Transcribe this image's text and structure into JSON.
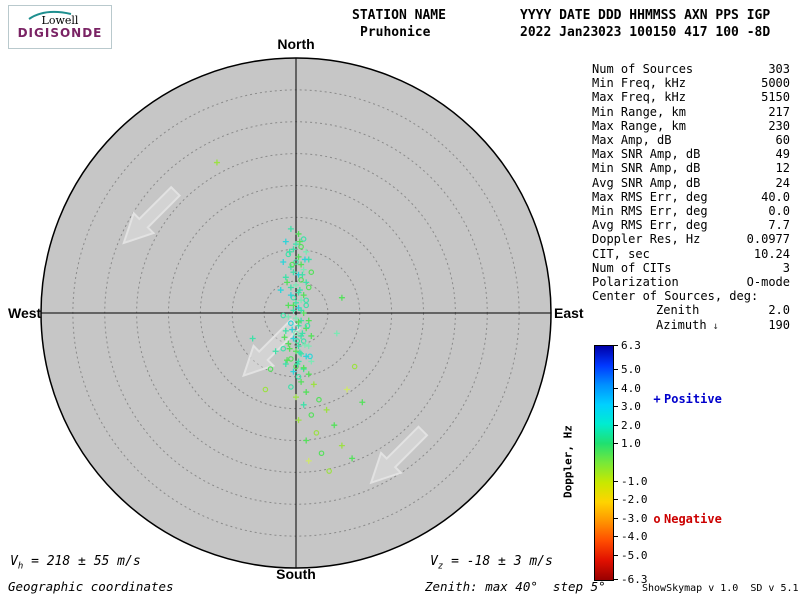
{
  "logo": {
    "line1": "Lowell",
    "line2": "DIGISONDE",
    "digisonde_color": "#7a2364",
    "swoosh_color": "#1f8f8f"
  },
  "header": {
    "station_label": "STATION NAME",
    "station_value": "Pruhonice",
    "date_label": "YYYY DATE",
    "date_value": "2022 Jan23",
    "flags_label": "DDD HHMMSS AXN PPS IGP",
    "flags_value": "023 100150 417 100 -8D"
  },
  "stats": [
    {
      "label": "Num of Sources",
      "value": "303"
    },
    {
      "label": "Min Freq, kHz",
      "value": "5000"
    },
    {
      "label": "Max Freq, kHz",
      "value": "5150"
    },
    {
      "label": "Min Range, km",
      "value": "217"
    },
    {
      "label": "Max Range, km",
      "value": "230"
    },
    {
      "label": "Max Amp, dB",
      "value": "60"
    },
    {
      "label": "Max SNR Amp, dB",
      "value": "49"
    },
    {
      "label": "Min SNR Amp, dB",
      "value": "12"
    },
    {
      "label": "Avg SNR Amp, dB",
      "value": "24"
    },
    {
      "label": "Max RMS Err, deg",
      "value": "40.0"
    },
    {
      "label": "Min RMS Err, deg",
      "value": "0.0"
    },
    {
      "label": "Avg RMS Err, deg",
      "value": "7.7"
    },
    {
      "label": "Doppler Res, Hz",
      "value": "0.0977"
    },
    {
      "label": "CIT, sec",
      "value": "10.24"
    },
    {
      "label": "Num of CITs",
      "value": "3"
    },
    {
      "label": "Polarization",
      "value": "O-mode"
    },
    {
      "label": "Center of Sources, deg:",
      "value": ""
    },
    {
      "label": "Zenith",
      "value": "2.0",
      "indent": true
    },
    {
      "label": "Azimuth",
      "value": "190",
      "indent": true,
      "icon": "↓"
    }
  ],
  "footer": {
    "vh": {
      "prefix": "V",
      "sub": "h",
      "rest": " = 218 ± 55 m/s"
    },
    "vz": {
      "prefix": "V",
      "sub": "z",
      "rest": " = -18 ± 3 m/s"
    },
    "geo": "Geographic coordinates",
    "zenith_note": "Zenith: max 40°  step 5°",
    "version": "ShowSkymap v 1.0  SD v 5.1"
  },
  "chart_data": {
    "type": "scatter",
    "subtype": "polar-skymap",
    "compass": {
      "north": "North",
      "south": "South",
      "east": "East",
      "west": "West"
    },
    "zenith_max_deg": 40,
    "zenith_step_deg": 5,
    "rings": 8,
    "circle_fill": "#c6c6c6",
    "ring_color": "#8a8a8a",
    "axis_color": "#000000",
    "arrow_angle_deg": 135,
    "arrows": [
      [
        -0.57,
        -0.38
      ],
      [
        -0.1,
        0.14
      ],
      [
        0.4,
        0.56
      ]
    ],
    "palette": [
      "#3fe0a8",
      "#55e05c",
      "#9ce044",
      "#2ed4d8",
      "#7ce8b4",
      "#cfe86a"
    ],
    "points": [
      [
        -0.02,
        -0.33,
        1,
        0
      ],
      [
        0.01,
        -0.31,
        1,
        1
      ],
      [
        0.03,
        -0.29,
        0,
        0
      ],
      [
        -0.04,
        -0.28,
        1,
        3
      ],
      [
        0,
        -0.27,
        1,
        0
      ],
      [
        0.02,
        -0.26,
        0,
        1
      ],
      [
        -0.01,
        -0.25,
        1,
        0
      ],
      [
        0.04,
        -0.24,
        1,
        4
      ],
      [
        -0.03,
        -0.23,
        0,
        0
      ],
      [
        0.01,
        -0.22,
        1,
        1
      ],
      [
        0.05,
        -0.21,
        1,
        0
      ],
      [
        -0.05,
        -0.2,
        1,
        3
      ],
      [
        0,
        -0.2,
        0,
        0
      ],
      [
        0.02,
        -0.19,
        1,
        1
      ],
      [
        -0.02,
        -0.18,
        1,
        0
      ],
      [
        0.03,
        -0.17,
        1,
        4
      ],
      [
        0.06,
        -0.16,
        0,
        1
      ],
      [
        -0.01,
        -0.16,
        1,
        0
      ],
      [
        0.01,
        -0.15,
        1,
        3
      ],
      [
        -0.04,
        -0.14,
        1,
        0
      ],
      [
        0.02,
        -0.13,
        0,
        1
      ],
      [
        0.04,
        -0.12,
        1,
        0
      ],
      [
        0,
        -0.11,
        1,
        4
      ],
      [
        -0.02,
        -0.1,
        1,
        0
      ],
      [
        0.05,
        -0.1,
        0,
        1
      ],
      [
        -0.06,
        -0.09,
        1,
        3
      ],
      [
        0.01,
        -0.08,
        1,
        0
      ],
      [
        0.03,
        -0.07,
        1,
        1
      ],
      [
        -0.01,
        -0.06,
        0,
        0
      ],
      [
        0.02,
        -0.05,
        1,
        4
      ],
      [
        0,
        -0.04,
        1,
        0
      ],
      [
        -0.03,
        -0.03,
        1,
        1
      ],
      [
        0.04,
        -0.03,
        0,
        0
      ],
      [
        0.01,
        -0.02,
        1,
        3
      ],
      [
        -0.01,
        -0.01,
        1,
        0
      ],
      [
        0.03,
        0,
        1,
        1
      ],
      [
        -0.05,
        0.01,
        0,
        0
      ],
      [
        0,
        0.02,
        1,
        4
      ],
      [
        0.02,
        0.03,
        1,
        0
      ],
      [
        0.05,
        0.03,
        1,
        1
      ],
      [
        -0.02,
        0.04,
        0,
        3
      ],
      [
        0.01,
        0.05,
        1,
        0
      ],
      [
        0.04,
        0.06,
        1,
        1
      ],
      [
        -0.04,
        0.07,
        1,
        0
      ],
      [
        0,
        0.08,
        0,
        4
      ],
      [
        0.02,
        0.09,
        1,
        0
      ],
      [
        0.06,
        0.09,
        1,
        1
      ],
      [
        -0.01,
        0.1,
        1,
        3
      ],
      [
        0.03,
        0.11,
        0,
        0
      ],
      [
        -0.03,
        0.12,
        1,
        1
      ],
      [
        0.01,
        0.13,
        1,
        0
      ],
      [
        0.05,
        0.13,
        1,
        4
      ],
      [
        -0.05,
        0.14,
        0,
        0
      ],
      [
        0,
        0.15,
        1,
        1
      ],
      [
        0.02,
        0.16,
        1,
        0
      ],
      [
        0.04,
        0.17,
        1,
        3
      ],
      [
        -0.02,
        0.18,
        0,
        1
      ],
      [
        0.01,
        0.19,
        1,
        0
      ],
      [
        0.06,
        0.19,
        1,
        4
      ],
      [
        -0.04,
        0.2,
        1,
        0
      ],
      [
        0,
        0.21,
        0,
        1
      ],
      [
        0.03,
        0.22,
        1,
        0
      ],
      [
        -0.01,
        0.23,
        1,
        3
      ],
      [
        0.05,
        0.24,
        1,
        1
      ],
      [
        0.01,
        0.25,
        0,
        0
      ],
      [
        0.02,
        0.27,
        1,
        1
      ],
      [
        0.07,
        0.28,
        1,
        2
      ],
      [
        -0.02,
        0.29,
        0,
        0
      ],
      [
        0.04,
        0.31,
        1,
        1
      ],
      [
        0,
        0.33,
        1,
        2
      ],
      [
        0.09,
        0.34,
        0,
        1
      ],
      [
        0.03,
        0.36,
        1,
        0
      ],
      [
        0.12,
        0.38,
        1,
        2
      ],
      [
        0.06,
        0.4,
        0,
        1
      ],
      [
        0.01,
        0.42,
        1,
        2
      ],
      [
        0.15,
        0.44,
        1,
        1
      ],
      [
        0.08,
        0.47,
        0,
        2
      ],
      [
        0.04,
        0.5,
        1,
        1
      ],
      [
        0.18,
        0.52,
        1,
        2
      ],
      [
        0.1,
        0.55,
        0,
        1
      ],
      [
        0.05,
        0.58,
        1,
        5
      ],
      [
        0.22,
        0.57,
        1,
        1
      ],
      [
        0.13,
        0.62,
        0,
        2
      ],
      [
        -0.31,
        -0.59,
        1,
        2
      ],
      [
        0.18,
        -0.06,
        1,
        1
      ],
      [
        0.23,
        0.21,
        0,
        2
      ],
      [
        -0.17,
        0.1,
        1,
        0
      ],
      [
        0.26,
        0.35,
        1,
        1
      ],
      [
        -0.12,
        0.3,
        0,
        2
      ],
      [
        -0.08,
        0.15,
        1,
        0
      ],
      [
        -0.1,
        0.22,
        0,
        1
      ],
      [
        0.16,
        0.08,
        1,
        4
      ],
      [
        0.2,
        0.3,
        1,
        5
      ],
      [
        0.015,
        -0.28,
        1,
        1
      ],
      [
        -0.025,
        -0.24,
        1,
        0
      ],
      [
        0.035,
        -0.21,
        1,
        3
      ],
      [
        -0.015,
        -0.19,
        0,
        1
      ],
      [
        0.025,
        -0.15,
        1,
        0
      ],
      [
        -0.035,
        -0.12,
        1,
        1
      ],
      [
        0.015,
        -0.09,
        1,
        0
      ],
      [
        -0.02,
        -0.07,
        1,
        3
      ],
      [
        0.04,
        -0.05,
        0,
        0
      ],
      [
        -0.01,
        -0.03,
        1,
        1
      ],
      [
        0.02,
        -0.01,
        1,
        0
      ],
      [
        -0.03,
        0.015,
        1,
        4
      ],
      [
        0.01,
        0.035,
        1,
        1
      ],
      [
        0.045,
        0.05,
        0,
        0
      ],
      [
        -0.015,
        0.065,
        1,
        3
      ],
      [
        0.025,
        0.08,
        1,
        0
      ],
      [
        -0.045,
        0.095,
        1,
        1
      ],
      [
        0.005,
        0.11,
        0,
        0
      ],
      [
        0.035,
        0.125,
        1,
        4
      ],
      [
        -0.025,
        0.14,
        1,
        1
      ],
      [
        0.015,
        0.155,
        1,
        0
      ],
      [
        0.055,
        0.17,
        0,
        3
      ],
      [
        -0.035,
        0.185,
        1,
        1
      ],
      [
        0.005,
        0.2,
        1,
        0
      ],
      [
        0.03,
        0.215,
        1,
        1
      ]
    ],
    "colorbar": {
      "label": "Doppler, Hz",
      "max": 6.3,
      "min": -6.3,
      "ticks": [
        "6.3",
        "5.0",
        "4.0",
        "3.0",
        "2.0",
        "1.0",
        "-1.0",
        "-2.0",
        "-3.0",
        "-4.0",
        "-5.0",
        "-6.3"
      ],
      "stops": [
        "#0000a8",
        "#0038ff",
        "#0090ff",
        "#00d0ff",
        "#00ecd0",
        "#20e070",
        "#78e838",
        "#c8e800",
        "#ffd400",
        "#ff9400",
        "#ff4c00",
        "#e01000",
        "#980000"
      ]
    },
    "legend": {
      "positive_symbol": "+",
      "positive_label": "Positive",
      "positive_color": "#0000cc",
      "negative_symbol": "o",
      "negative_label": "Negative",
      "negative_color": "#cc0000"
    }
  }
}
